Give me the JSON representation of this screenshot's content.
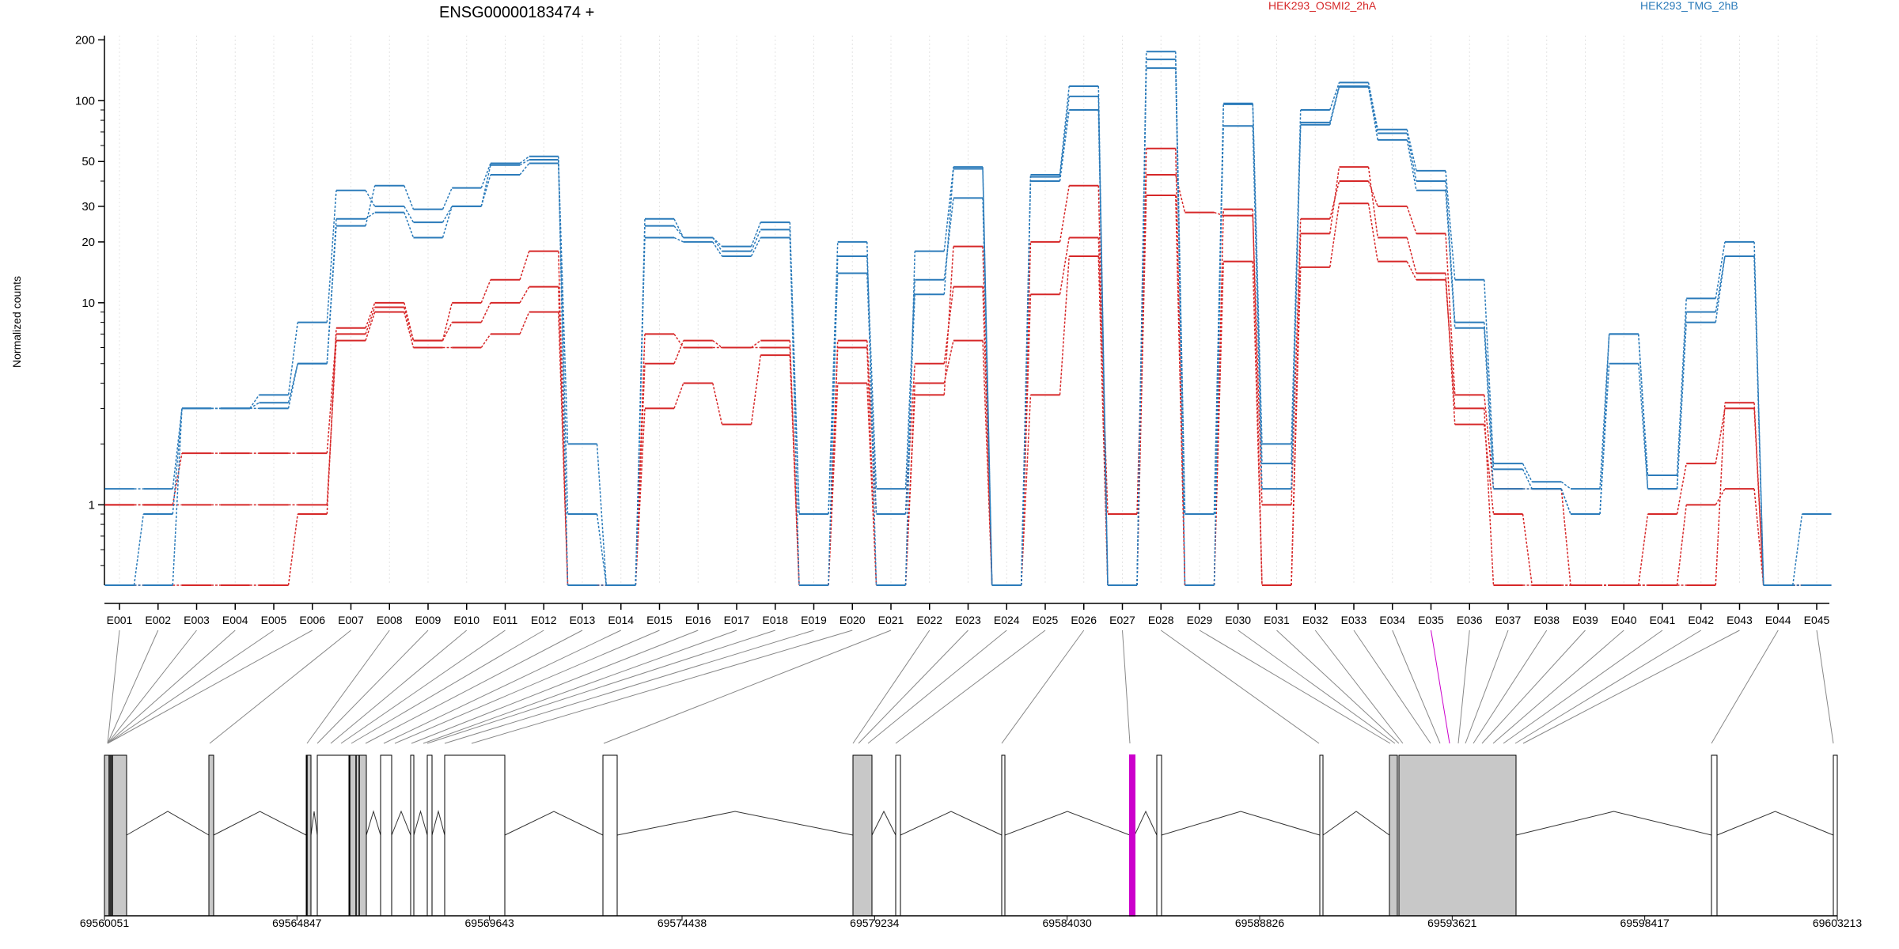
{
  "chart_data": {
    "type": "line",
    "title": "ENSG00000183474 +",
    "ylabel": "Normalized counts",
    "yscale": "log",
    "ylim": [
      0.4,
      210
    ],
    "yticks": [
      1,
      10,
      20,
      30,
      50,
      100,
      200
    ],
    "ytick_labels": [
      "1",
      "10",
      "20",
      "30",
      "50",
      "100",
      "200"
    ],
    "zero_value": 0.4,
    "legend": {
      "placement": "top",
      "entries": [
        {
          "label": "HEK293_OSMI2_2hA",
          "color": "#d62728"
        },
        {
          "label": "HEK293_TMG_2hB",
          "color": "#2b7bba"
        }
      ]
    },
    "categories": [
      "E001",
      "E002",
      "E003",
      "E004",
      "E005",
      "E006",
      "E007",
      "E008",
      "E009",
      "E010",
      "E011",
      "E012",
      "E013",
      "E014",
      "E015",
      "E016",
      "E017",
      "E018",
      "E019",
      "E020",
      "E021",
      "E022",
      "E023",
      "E024",
      "E025",
      "E026",
      "E027",
      "E028",
      "E029",
      "E030",
      "E031",
      "E032",
      "E033",
      "E034",
      "E035",
      "E036",
      "E037",
      "E038",
      "E039",
      "E040",
      "E041",
      "E042",
      "E043",
      "E044",
      "E045"
    ],
    "series": [
      {
        "group": 0,
        "values": [
          1.0,
          1.0,
          1.8,
          1.8,
          1.8,
          1.8,
          7.0,
          9.5,
          6.5,
          8.0,
          10.0,
          12.0,
          0.4,
          0.4,
          5.0,
          6.5,
          6.0,
          6.5,
          0.4,
          6.5,
          0.9,
          5.0,
          12.0,
          0.4,
          11.0,
          21.0,
          0.9,
          43.0,
          28.0,
          27.0,
          1.0,
          26.0,
          40.0,
          30.0,
          22.0,
          3.5,
          1.2,
          1.2,
          0.4,
          0.4,
          0.9,
          1.6,
          3.0,
          0.4,
          0.4
        ]
      },
      {
        "group": 0,
        "values": [
          1.0,
          1.0,
          1.0,
          1.0,
          1.0,
          1.0,
          6.5,
          9.0,
          6.0,
          6.0,
          7.0,
          9.0,
          0.4,
          0.4,
          3.0,
          4.0,
          2.5,
          5.5,
          0.4,
          4.0,
          0.4,
          4.0,
          6.5,
          0.4,
          3.5,
          17.0,
          0.4,
          34.0,
          0.4,
          16.0,
          0.4,
          15.0,
          31.0,
          16.0,
          13.0,
          3.0,
          0.4,
          0.4,
          0.4,
          0.4,
          0.4,
          1.0,
          1.2,
          0.4,
          0.4
        ]
      },
      {
        "group": 0,
        "values": [
          0.4,
          0.4,
          0.4,
          0.4,
          0.4,
          0.9,
          7.5,
          10.0,
          6.5,
          10.0,
          13.0,
          18.0,
          0.4,
          0.4,
          7.0,
          6.0,
          6.0,
          6.0,
          0.4,
          6.0,
          0.4,
          3.5,
          19.0,
          0.4,
          20.0,
          38.0,
          0.4,
          58.0,
          0.4,
          29.0,
          0.4,
          22.0,
          47.0,
          21.0,
          14.0,
          2.5,
          0.9,
          0.4,
          0.4,
          0.4,
          0.4,
          0.4,
          3.2,
          0.4,
          0.4
        ]
      },
      {
        "group": 1,
        "values": [
          1.2,
          1.2,
          3.0,
          3.0,
          3.5,
          8.0,
          36.0,
          30.0,
          25.0,
          30.0,
          48.0,
          51.0,
          2.0,
          0.4,
          24.0,
          21.0,
          18.0,
          23.0,
          0.4,
          17.0,
          1.2,
          13.0,
          33.0,
          0.4,
          42.0,
          105.0,
          0.4,
          160.0,
          0.4,
          96.0,
          2.0,
          78.0,
          118.0,
          69.0,
          40.0,
          8.0,
          1.5,
          1.2,
          0.9,
          7.0,
          1.2,
          9.0,
          17.0,
          0.4,
          0.9
        ]
      },
      {
        "group": 1,
        "values": [
          0.4,
          0.9,
          3.0,
          3.0,
          3.2,
          5.0,
          26.0,
          28.0,
          21.0,
          30.0,
          43.0,
          49.0,
          0.9,
          0.4,
          21.0,
          20.0,
          17.0,
          21.0,
          0.9,
          14.0,
          0.9,
          11.0,
          46.0,
          0.4,
          40.0,
          90.0,
          0.4,
          145.0,
          0.9,
          75.0,
          1.2,
          76.0,
          117.0,
          64.0,
          36.0,
          7.5,
          1.2,
          1.2,
          0.9,
          5.0,
          1.2,
          8.0,
          17.0,
          0.4,
          0.4
        ]
      },
      {
        "group": 1,
        "values": [
          0.4,
          0.4,
          3.0,
          3.0,
          3.0,
          5.0,
          24.0,
          38.0,
          29.0,
          37.0,
          49.0,
          53.0,
          0.4,
          0.4,
          26.0,
          21.0,
          19.0,
          25.0,
          0.9,
          20.0,
          0.4,
          18.0,
          47.0,
          0.4,
          43.0,
          118.0,
          0.4,
          175.0,
          0.9,
          97.0,
          1.6,
          90.0,
          123.0,
          72.0,
          45.0,
          13.0,
          1.6,
          1.3,
          1.2,
          7.0,
          1.4,
          10.5,
          20.0,
          0.4,
          0.4
        ]
      }
    ],
    "genome": {
      "x_ticks": [
        "69560051",
        "69564847",
        "69569643",
        "69574438",
        "69579234",
        "69584030",
        "69588826",
        "69593621",
        "69598417",
        "69603213"
      ],
      "highlight_exon": "E035",
      "highlight_color": "#cc00cc"
    }
  }
}
